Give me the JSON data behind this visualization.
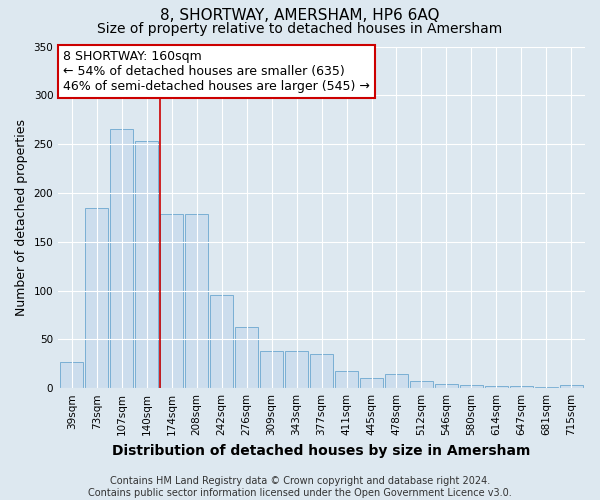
{
  "title": "8, SHORTWAY, AMERSHAM, HP6 6AQ",
  "subtitle": "Size of property relative to detached houses in Amersham",
  "xlabel": "Distribution of detached houses by size in Amersham",
  "ylabel": "Number of detached properties",
  "categories": [
    "39sqm",
    "73sqm",
    "107sqm",
    "140sqm",
    "174sqm",
    "208sqm",
    "242sqm",
    "276sqm",
    "309sqm",
    "343sqm",
    "377sqm",
    "411sqm",
    "445sqm",
    "478sqm",
    "512sqm",
    "546sqm",
    "580sqm",
    "614sqm",
    "647sqm",
    "681sqm",
    "715sqm"
  ],
  "values": [
    27,
    185,
    265,
    253,
    178,
    178,
    95,
    63,
    38,
    38,
    35,
    18,
    10,
    15,
    7,
    4,
    3,
    2,
    2,
    1,
    3
  ],
  "bar_color": "#ccdded",
  "bar_edge_color": "#7aafd4",
  "vline_x_index": 4,
  "vline_color": "#cc0000",
  "annotation_text": "8 SHORTWAY: 160sqm\n← 54% of detached houses are smaller (635)\n46% of semi-detached houses are larger (545) →",
  "annotation_box_color": "#ffffff",
  "annotation_box_edge_color": "#cc0000",
  "background_color": "#dde8f0",
  "plot_bg_color": "#dde8f0",
  "grid_color": "#ffffff",
  "footnote": "Contains HM Land Registry data © Crown copyright and database right 2024.\nContains public sector information licensed under the Open Government Licence v3.0.",
  "ylim": [
    0,
    350
  ],
  "title_fontsize": 11,
  "subtitle_fontsize": 10,
  "xlabel_fontsize": 10,
  "ylabel_fontsize": 9,
  "tick_fontsize": 7.5,
  "annotation_fontsize": 9,
  "footnote_fontsize": 7
}
